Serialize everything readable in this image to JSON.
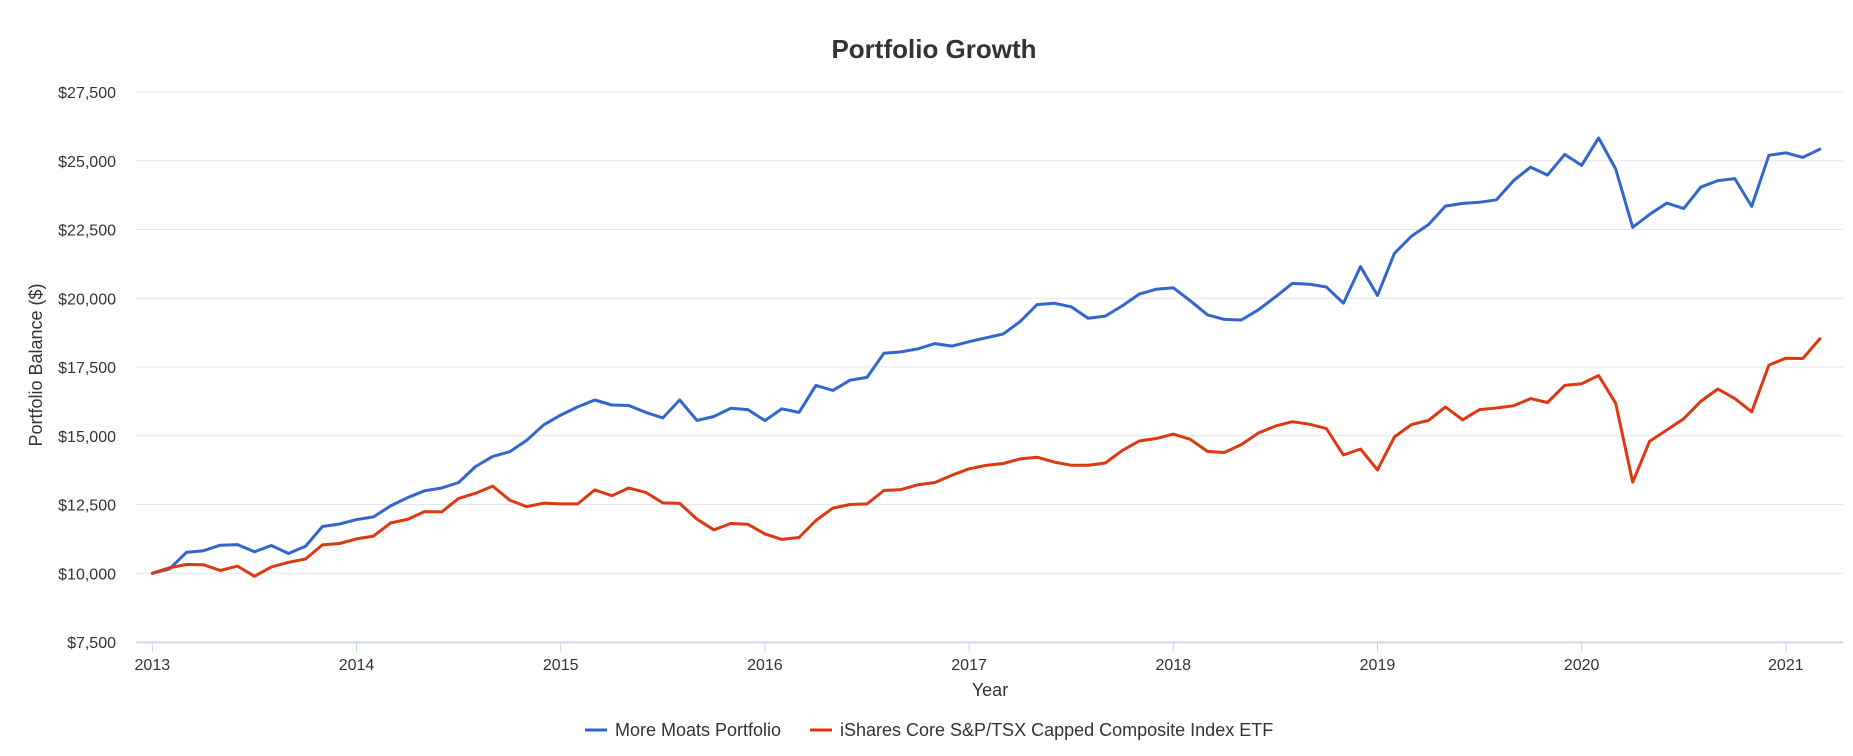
{
  "chart_data": {
    "type": "line",
    "title": "Portfolio Growth",
    "xlabel": "Year",
    "ylabel": "Portfolio Balance ($)",
    "xlim": [
      2012.92,
      2021.28
    ],
    "ylim": [
      7500,
      27500
    ],
    "x_ticks": [
      2013,
      2014,
      2015,
      2016,
      2017,
      2018,
      2019,
      2020,
      2021
    ],
    "x_tick_labels": [
      "2013",
      "2014",
      "2015",
      "2016",
      "2017",
      "2018",
      "2019",
      "2020",
      "2021"
    ],
    "y_ticks": [
      7500,
      10000,
      12500,
      15000,
      17500,
      20000,
      22500,
      25000,
      27500
    ],
    "y_tick_labels": [
      "$7,500",
      "$10,000",
      "$12,500",
      "$15,000",
      "$17,500",
      "$20,000",
      "$22,500",
      "$25,000",
      "$27,500"
    ],
    "grid": true,
    "legend_position": "bottom-center",
    "series": [
      {
        "name": "More Moats Portfolio",
        "color": "#3366cc",
        "x": [
          2013.0,
          2013.083,
          2013.167,
          2013.25,
          2013.333,
          2013.417,
          2013.5,
          2013.583,
          2013.667,
          2013.75,
          2013.833,
          2013.917,
          2014.0,
          2014.083,
          2014.167,
          2014.25,
          2014.333,
          2014.417,
          2014.5,
          2014.583,
          2014.667,
          2014.75,
          2014.833,
          2014.917,
          2015.0,
          2015.083,
          2015.167,
          2015.25,
          2015.333,
          2015.417,
          2015.5,
          2015.583,
          2015.667,
          2015.75,
          2015.833,
          2015.917,
          2016.0,
          2016.083,
          2016.167,
          2016.25,
          2016.333,
          2016.417,
          2016.5,
          2016.583,
          2016.667,
          2016.75,
          2016.833,
          2016.917,
          2017.0,
          2017.083,
          2017.167,
          2017.25,
          2017.333,
          2017.417,
          2017.5,
          2017.583,
          2017.667,
          2017.75,
          2017.833,
          2017.917,
          2018.0,
          2018.083,
          2018.167,
          2018.25,
          2018.333,
          2018.417,
          2018.5,
          2018.583,
          2018.667,
          2018.75,
          2018.833,
          2018.917,
          2019.0,
          2019.083,
          2019.167,
          2019.25,
          2019.333,
          2019.417,
          2019.5,
          2019.583,
          2019.667,
          2019.75,
          2019.833,
          2019.917,
          2020.0,
          2020.083,
          2020.167,
          2020.25,
          2020.333,
          2020.417,
          2020.5,
          2020.583,
          2020.667,
          2020.75,
          2020.833,
          2020.917,
          2021.0,
          2021.083,
          2021.167
        ],
        "values": [
          10000,
          10150,
          10760,
          10820,
          11020,
          11040,
          10780,
          11010,
          10720,
          10980,
          11700,
          11790,
          11950,
          12050,
          12450,
          12750,
          13000,
          13100,
          13300,
          13880,
          14250,
          14420,
          14830,
          15400,
          15750,
          16050,
          16300,
          16120,
          16100,
          15850,
          15650,
          16300,
          15560,
          15700,
          16000,
          15950,
          15550,
          15980,
          15850,
          16830,
          16650,
          17020,
          17120,
          18000,
          18050,
          18160,
          18350,
          18260,
          18420,
          18560,
          18700,
          19150,
          19770,
          19820,
          19690,
          19270,
          19350,
          19720,
          20150,
          20330,
          20380,
          19910,
          19400,
          19230,
          19210,
          19580,
          20050,
          20540,
          20510,
          20410,
          19820,
          21150,
          20100,
          21630,
          22260,
          22680,
          23350,
          23450,
          23490,
          23580,
          24280,
          24770,
          24480,
          25230,
          24830,
          25830,
          24700,
          22580,
          23050,
          23460,
          23260,
          24040,
          24280,
          24350,
          23340,
          25200,
          25290,
          25120,
          25420
        ]
      },
      {
        "name": "iShares Core S&P/TSX Capped Composite Index ETF",
        "color": "#dc3912",
        "x": [
          2013.0,
          2013.083,
          2013.167,
          2013.25,
          2013.333,
          2013.417,
          2013.5,
          2013.583,
          2013.667,
          2013.75,
          2013.833,
          2013.917,
          2014.0,
          2014.083,
          2014.167,
          2014.25,
          2014.333,
          2014.417,
          2014.5,
          2014.583,
          2014.667,
          2014.75,
          2014.833,
          2014.917,
          2015.0,
          2015.083,
          2015.167,
          2015.25,
          2015.333,
          2015.417,
          2015.5,
          2015.583,
          2015.667,
          2015.75,
          2015.833,
          2015.917,
          2016.0,
          2016.083,
          2016.167,
          2016.25,
          2016.333,
          2016.417,
          2016.5,
          2016.583,
          2016.667,
          2016.75,
          2016.833,
          2016.917,
          2017.0,
          2017.083,
          2017.167,
          2017.25,
          2017.333,
          2017.417,
          2017.5,
          2017.583,
          2017.667,
          2017.75,
          2017.833,
          2017.917,
          2018.0,
          2018.083,
          2018.167,
          2018.25,
          2018.333,
          2018.417,
          2018.5,
          2018.583,
          2018.667,
          2018.75,
          2018.833,
          2018.917,
          2019.0,
          2019.083,
          2019.167,
          2019.25,
          2019.333,
          2019.417,
          2019.5,
          2019.583,
          2019.667,
          2019.75,
          2019.833,
          2019.917,
          2020.0,
          2020.083,
          2020.167,
          2020.25,
          2020.333,
          2020.417,
          2020.5,
          2020.583,
          2020.667,
          2020.75,
          2020.833,
          2020.917,
          2021.0,
          2021.083,
          2021.167
        ],
        "values": [
          10000,
          10200,
          10320,
          10310,
          10100,
          10260,
          9890,
          10230,
          10400,
          10520,
          11030,
          11080,
          11250,
          11350,
          11830,
          11960,
          12240,
          12230,
          12720,
          12910,
          13170,
          12660,
          12420,
          12550,
          12520,
          12520,
          13030,
          12820,
          13100,
          12940,
          12560,
          12540,
          11970,
          11580,
          11810,
          11780,
          11430,
          11230,
          11300,
          11920,
          12370,
          12500,
          12520,
          13010,
          13040,
          13220,
          13300,
          13570,
          13800,
          13920,
          13990,
          14160,
          14220,
          14040,
          13930,
          13930,
          14010,
          14460,
          14810,
          14900,
          15060,
          14870,
          14430,
          14390,
          14680,
          15100,
          15350,
          15510,
          15420,
          15260,
          14300,
          14520,
          13760,
          14960,
          15410,
          15560,
          16050,
          15580,
          15950,
          16010,
          16090,
          16350,
          16210,
          16830,
          16890,
          17190,
          16180,
          13310,
          14800,
          15210,
          15620,
          16250,
          16700,
          16350,
          15870,
          17570,
          17820,
          17810,
          18530
        ]
      }
    ]
  }
}
